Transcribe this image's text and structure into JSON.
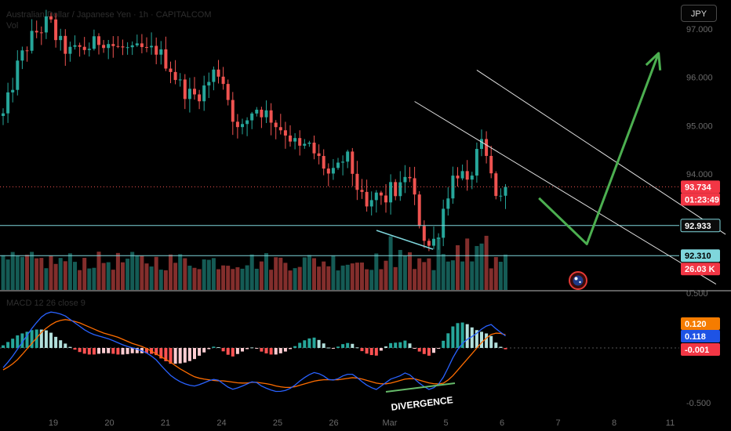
{
  "header": {
    "symbol": "Australian Dollar / Japanese Yen · 1h · CAPITALCOM",
    "volume_label": "Vol"
  },
  "currency_button": "JPY",
  "price_axis": {
    "ticks": [
      {
        "value": 97.0,
        "label": "97.000"
      },
      {
        "value": 96.0,
        "label": "96.000"
      },
      {
        "value": 95.0,
        "label": "95.000"
      },
      {
        "value": 94.0,
        "label": "94.000"
      }
    ],
    "tags": [
      {
        "name": "current-price",
        "label": "93.734",
        "value": 93.734,
        "bg": "#f23645",
        "fg": "#ffffff"
      },
      {
        "name": "countdown",
        "label": "01:23:49",
        "bg": "#f23645",
        "fg": "#ffffff"
      },
      {
        "name": "level-92933",
        "label": "92.933",
        "value": 92.933,
        "bg": "#0c0c0c",
        "fg": "#ffffff",
        "border": "#7fd6dc"
      },
      {
        "name": "level-92310",
        "label": "92.310",
        "value": 92.31,
        "bg": "#7fd6dc",
        "fg": "#000000"
      },
      {
        "name": "volume-value",
        "label": "26.03 K",
        "bg": "#f23645",
        "fg": "#ffffff"
      }
    ]
  },
  "macd_axis": {
    "ticks": [
      {
        "value": 0.5,
        "label": "0.500"
      },
      {
        "value": -0.5,
        "label": "-0.500"
      }
    ],
    "tags": [
      {
        "name": "signal-value",
        "label": "0.120",
        "value": 0.12,
        "bg": "#f57c00",
        "fg": "#ffffff"
      },
      {
        "name": "macd-value",
        "label": "0.118",
        "value": 0.118,
        "bg": "#1e53e5",
        "fg": "#ffffff"
      },
      {
        "name": "histogram-value",
        "label": "-0.001",
        "value": -0.001,
        "bg": "#f23645",
        "fg": "#ffffff"
      }
    ]
  },
  "time_axis": {
    "labels": [
      "19",
      "20",
      "21",
      "24",
      "25",
      "26",
      "Mar",
      "5",
      "6",
      "7",
      "8",
      "11"
    ]
  },
  "macd_header": "MACD 12 26 close 9",
  "annotation": "DIVERGENCE",
  "colors": {
    "up": "#26a69a",
    "down": "#ef5350",
    "macd": "#2962ff",
    "signal": "#ff6d00",
    "level": "#7fd6dc",
    "arrow": "#4caf50",
    "channel": "#e0e0e0",
    "divergence": "#66bb6a"
  },
  "chart_data": {
    "type": "candlestick",
    "symbol": "Australian Dollar / Japanese Yen",
    "timeframe": "1h",
    "x_labels": [
      "19",
      "20",
      "21",
      "24",
      "25",
      "26",
      "Mar",
      "5",
      "6",
      "7",
      "8",
      "11"
    ],
    "y_ticks": [
      97.0,
      96.0,
      95.0,
      94.0
    ],
    "ylim": [
      91.6,
      97.6
    ],
    "last_price": 93.734,
    "horizontal_levels": [
      92.933,
      92.31
    ],
    "path_points": [
      95.2,
      95.7,
      96.3,
      96.6,
      96.9,
      97.0,
      97.2,
      96.8,
      96.6,
      96.5,
      96.6,
      96.6,
      96.7,
      96.8,
      96.7,
      96.6,
      96.6,
      96.5,
      96.6,
      96.5,
      96.6,
      96.4,
      96.2,
      95.9,
      95.7,
      95.6,
      95.7,
      95.9,
      96.2,
      95.9,
      95.3,
      94.8,
      95.1,
      95.4,
      95.3,
      95.2,
      95.0,
      94.9,
      94.7,
      94.5,
      94.6,
      94.4,
      94.2,
      93.9,
      94.1,
      94.4,
      94.0,
      93.5,
      93.2,
      93.6,
      93.4,
      93.7,
      93.6,
      94.1,
      93.5,
      92.8,
      92.5,
      92.7,
      93.4,
      93.9,
      94.1,
      93.7,
      94.3,
      94.6,
      94.0,
      93.5,
      93.3
    ],
    "channel_lines": [
      {
        "start": [
          99,
          96.15
        ],
        "end": [
          151,
          92.75
        ]
      },
      {
        "start": [
          86,
          95.5
        ],
        "end": [
          149,
          91.72
        ]
      }
    ],
    "forecast_arrow": [
      [
        112,
        93.5
      ],
      [
        122,
        92.55
      ],
      [
        137,
        96.5
      ]
    ],
    "volume": {
      "last_value": "26.03 K"
    },
    "macd": {
      "params": "12 26 close 9",
      "yticks": [
        0.5,
        -0.5
      ],
      "macd_last": 0.118,
      "signal_last": 0.12,
      "histogram_last": -0.001,
      "macd_points": [
        -0.18,
        -0.1,
        0.0,
        0.1,
        0.2,
        0.28,
        0.33,
        0.32,
        0.3,
        0.25,
        0.2,
        0.15,
        0.12,
        0.1,
        0.08,
        0.05,
        0.02,
        0.0,
        -0.02,
        -0.05,
        -0.1,
        -0.18,
        -0.25,
        -0.3,
        -0.33,
        -0.35,
        -0.33,
        -0.3,
        -0.28,
        -0.33,
        -0.38,
        -0.36,
        -0.33,
        -0.3,
        -0.35,
        -0.38,
        -0.4,
        -0.39,
        -0.36,
        -0.3,
        -0.25,
        -0.22,
        -0.25,
        -0.3,
        -0.28,
        -0.24,
        -0.24,
        -0.3,
        -0.35,
        -0.38,
        -0.33,
        -0.28,
        -0.26,
        -0.22,
        -0.28,
        -0.34,
        -0.38,
        -0.35,
        -0.25,
        -0.1,
        0.02,
        0.08,
        0.12,
        0.18,
        0.22,
        0.16,
        0.11
      ],
      "signal_points": [
        -0.2,
        -0.16,
        -0.1,
        -0.02,
        0.06,
        0.14,
        0.2,
        0.24,
        0.26,
        0.25,
        0.23,
        0.2,
        0.17,
        0.14,
        0.12,
        0.1,
        0.07,
        0.04,
        0.02,
        -0.01,
        -0.05,
        -0.09,
        -0.13,
        -0.18,
        -0.22,
        -0.26,
        -0.28,
        -0.29,
        -0.3,
        -0.3,
        -0.31,
        -0.32,
        -0.32,
        -0.31,
        -0.32,
        -0.33,
        -0.35,
        -0.36,
        -0.36,
        -0.34,
        -0.32,
        -0.3,
        -0.29,
        -0.29,
        -0.29,
        -0.28,
        -0.27,
        -0.28,
        -0.3,
        -0.32,
        -0.33,
        -0.32,
        -0.3,
        -0.28,
        -0.28,
        -0.3,
        -0.32,
        -0.33,
        -0.32,
        -0.26,
        -0.18,
        -0.1,
        -0.02,
        0.06,
        0.12,
        0.14,
        0.12
      ]
    }
  }
}
